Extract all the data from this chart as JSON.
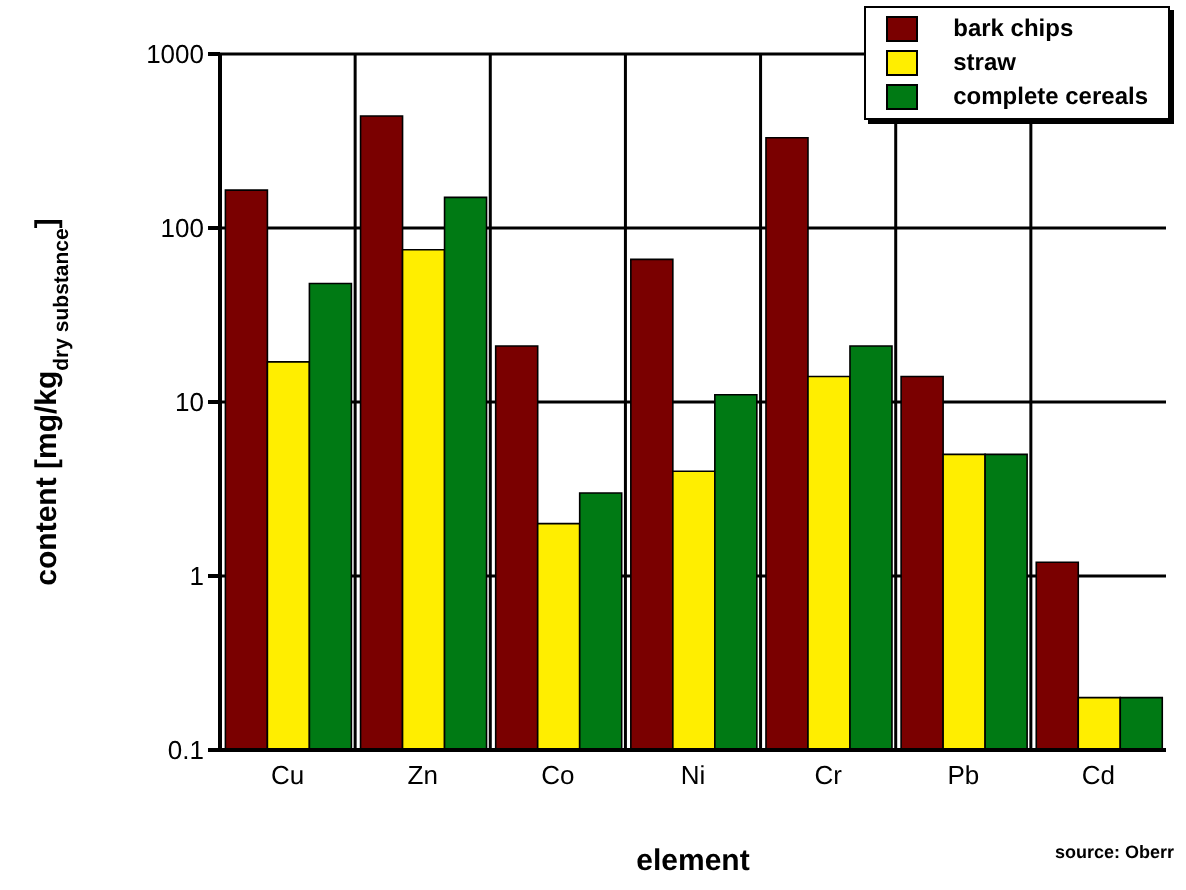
{
  "chart_data": {
    "type": "bar",
    "xlabel": "element",
    "ylabel": "content [mg/kg$_{dry substance}$]",
    "categories": [
      "Cu",
      "Zn",
      "Co",
      "Ni",
      "Cr",
      "Pb",
      "Cd"
    ],
    "series": [
      {
        "name": "bark chips",
        "color": "#7a0000",
        "values": [
          165,
          440,
          21,
          66,
          330,
          14,
          1.2
        ]
      },
      {
        "name": "straw",
        "color": "#ffee00",
        "values": [
          17,
          75,
          2,
          4,
          14,
          5,
          0.2
        ]
      },
      {
        "name": "complete cereals",
        "color": "#007a14",
        "values": [
          48,
          150,
          3,
          11,
          21,
          5,
          0.2
        ]
      }
    ],
    "log": true,
    "ylim": [
      0.1,
      1000
    ],
    "yticks": [
      0.1,
      1,
      10,
      100,
      1000
    ],
    "grid": true,
    "legend": "top right",
    "annotations": [
      "source: Oberr"
    ]
  }
}
